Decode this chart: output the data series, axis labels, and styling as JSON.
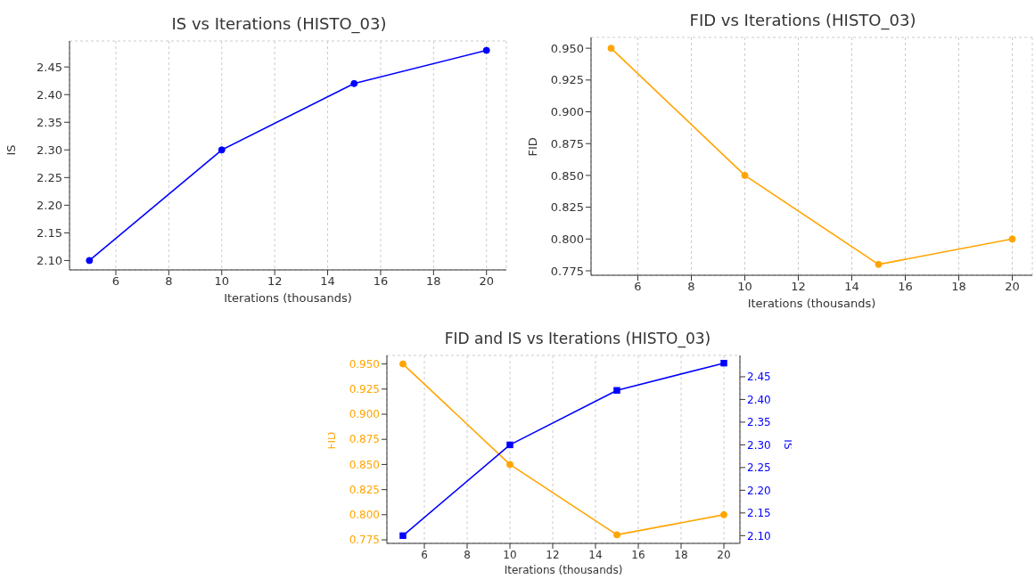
{
  "chart_data": [
    {
      "type": "line",
      "title": "IS vs Iterations (HISTO_03)",
      "xlabel": "Iterations (thousands)",
      "ylabel": "IS",
      "x": [
        5,
        10,
        15,
        20
      ],
      "series": [
        {
          "color": "#0000ff",
          "values": [
            2.1,
            2.3,
            2.42,
            2.48
          ]
        }
      ],
      "xlim": [
        4.25,
        20.75
      ],
      "xticks": [
        6,
        8,
        10,
        12,
        14,
        16,
        18,
        20
      ],
      "ylim": [
        2.083,
        2.497
      ],
      "yticks": [
        {
          "value": 2.1,
          "label": "2.10"
        },
        2.15,
        {
          "value": 2.2,
          "label": "2.20"
        },
        2.25,
        {
          "value": 2.3,
          "label": "2.30"
        },
        2.35,
        {
          "value": 2.4,
          "label": "2.40"
        },
        2.45
      ],
      "grid": true,
      "marker": "circle",
      "line_style": "solid"
    },
    {
      "type": "line",
      "title": "FID vs Iterations (HISTO_03)",
      "xlabel": "Iterations (thousands)",
      "ylabel": "FID",
      "x": [
        5,
        10,
        15,
        20
      ],
      "series": [
        {
          "color": "#ffa500",
          "values": [
            0.95,
            0.85,
            0.78,
            0.8
          ]
        }
      ],
      "xlim": [
        4.25,
        20.75
      ],
      "xticks": [
        6,
        8,
        10,
        12,
        14,
        16,
        18,
        20
      ],
      "ylim": [
        0.7715,
        0.9585
      ],
      "yticks": [
        0.775,
        {
          "value": 0.8,
          "label": "0.800"
        },
        0.825,
        {
          "value": 0.85,
          "label": "0.850"
        },
        0.875,
        {
          "value": 0.9,
          "label": "0.900"
        },
        0.925,
        {
          "value": 0.95,
          "label": "0.950"
        }
      ],
      "grid": true,
      "marker": "circle",
      "line_style": "solid"
    },
    {
      "type": "line",
      "title": "FID and IS vs Iterations (HISTO_03)",
      "xlabel": "Iterations (thousands)",
      "ylabel": "FID",
      "y2label": "IS",
      "x": [
        5,
        10,
        15,
        20
      ],
      "series": [
        {
          "color": "#ffa500",
          "values": [
            0.95,
            0.85,
            0.78,
            0.8
          ],
          "marker": "circle"
        },
        {
          "color": "#0000ff",
          "values": [
            2.1,
            2.3,
            2.42,
            2.48
          ],
          "axis": "y2",
          "marker": "square"
        }
      ],
      "xlim": [
        4.25,
        20.75
      ],
      "xticks": [
        6,
        8,
        10,
        12,
        14,
        16,
        18,
        20
      ],
      "ylim": [
        0.7715,
        0.9585
      ],
      "yticks": [
        0.775,
        {
          "value": 0.8,
          "label": "0.800"
        },
        0.825,
        {
          "value": 0.85,
          "label": "0.850"
        },
        0.875,
        {
          "value": 0.9,
          "label": "0.900"
        },
        0.925,
        {
          "value": 0.95,
          "label": "0.950"
        }
      ],
      "y2lim": [
        2.083,
        2.497
      ],
      "y2ticks": [
        {
          "value": 2.1,
          "label": "2.10"
        },
        2.15,
        {
          "value": 2.2,
          "label": "2.20"
        },
        2.25,
        {
          "value": 2.3,
          "label": "2.30"
        },
        2.35,
        {
          "value": 2.4,
          "label": "2.40"
        },
        2.45
      ],
      "grid": true,
      "line_style": "solid"
    }
  ]
}
